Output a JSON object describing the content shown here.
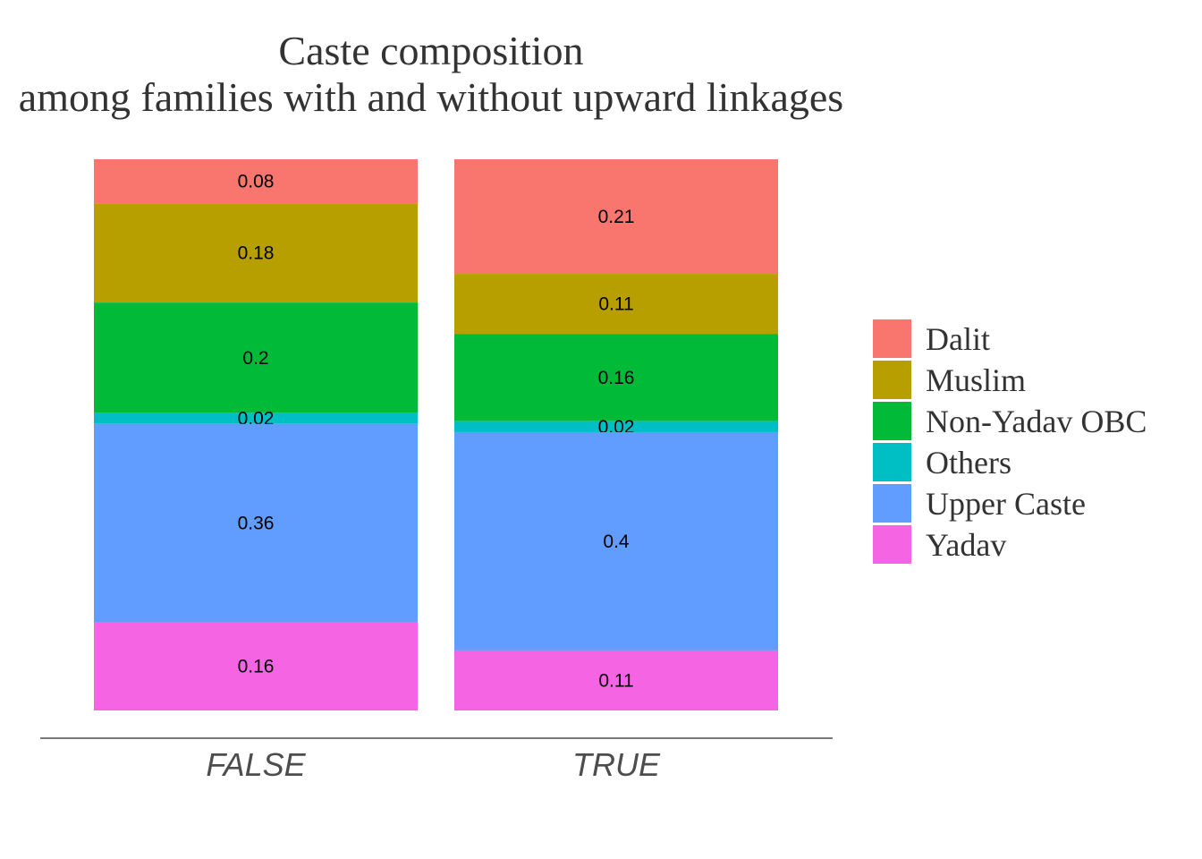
{
  "chart_data": {
    "type": "bar",
    "stacked": true,
    "title": "Caste composition",
    "subtitle": "among families with and without upward linkages",
    "xlabel": "",
    "ylabel": "",
    "ylim": [
      0,
      1
    ],
    "grid": false,
    "legend_position": "right",
    "categories": [
      "FALSE",
      "TRUE"
    ],
    "series": [
      {
        "name": "Dalit",
        "color": "#F8766D",
        "values": [
          0.08,
          0.21
        ],
        "labels": [
          "0.08",
          "0.21"
        ]
      },
      {
        "name": "Muslim",
        "color": "#B79F00",
        "values": [
          0.18,
          0.11
        ],
        "labels": [
          "0.18",
          "0.11"
        ]
      },
      {
        "name": "Non-Yadav OBC",
        "color": "#00BA38",
        "values": [
          0.2,
          0.16
        ],
        "labels": [
          "0.2",
          "0.16"
        ]
      },
      {
        "name": "Others",
        "color": "#00BFC4",
        "values": [
          0.02,
          0.02
        ],
        "labels": [
          "0.02",
          "0.02"
        ]
      },
      {
        "name": "Upper Caste",
        "color": "#619CFF",
        "values": [
          0.36,
          0.4
        ],
        "labels": [
          "0.36",
          "0.4"
        ]
      },
      {
        "name": "Yadav",
        "color": "#F564E3",
        "values": [
          0.16,
          0.11
        ],
        "labels": [
          "0.16",
          "0.11"
        ]
      }
    ]
  }
}
